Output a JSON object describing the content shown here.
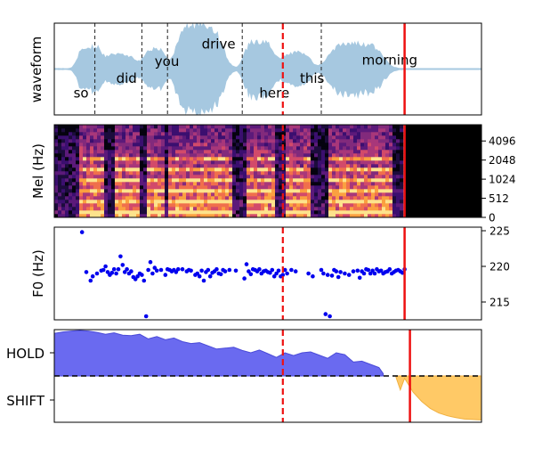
{
  "colors": {
    "waveform": "#a6c8e0",
    "divider": "#222222",
    "cursor": "#ee1111",
    "f0_points": "#0000ee",
    "hold_fill": "#6a6af0",
    "hold_line": "#4a4ad8",
    "shift_fill": "#ffc966",
    "shift_line": "#f0b040",
    "spec_bg": "#000000"
  },
  "chart_data": [
    {
      "type": "area",
      "panel": "waveform",
      "ylabel": "waveform",
      "xlim": [
        0,
        1
      ],
      "ylim": [
        -1,
        1
      ],
      "time_marks": [
        0.095,
        0.205,
        0.265,
        0.44,
        0.625
      ],
      "dashed_cursor": 0.535,
      "solid_cursor": 0.82,
      "words": [
        {
          "text": "so",
          "x": 0.045,
          "y": -0.62
        },
        {
          "text": "did",
          "x": 0.145,
          "y": -0.3
        },
        {
          "text": "you",
          "x": 0.235,
          "y": 0.07
        },
        {
          "text": "drive",
          "x": 0.345,
          "y": 0.45
        },
        {
          "text": "here",
          "x": 0.48,
          "y": -0.62
        },
        {
          "text": "this",
          "x": 0.575,
          "y": -0.3
        },
        {
          "text": "morning",
          "x": 0.72,
          "y": 0.1
        }
      ]
    },
    {
      "type": "heatmap",
      "panel": "mel",
      "ylabel": "Mel (Hz)",
      "yticks": [
        "0",
        "512",
        "1024",
        "2048",
        "4096"
      ],
      "silence_from": 0.82,
      "dashed_cursor": 0.535,
      "solid_cursor": 0.82
    },
    {
      "type": "scatter",
      "panel": "f0",
      "ylabel": "F0 (Hz)",
      "ylim": [
        212.5,
        225.5
      ],
      "yticks": [
        215,
        220,
        225
      ],
      "dashed_cursor": 0.535,
      "solid_cursor": 0.82,
      "x": [
        0.065,
        0.075,
        0.085,
        0.09,
        0.1,
        0.11,
        0.115,
        0.12,
        0.125,
        0.13,
        0.135,
        0.14,
        0.145,
        0.15,
        0.155,
        0.16,
        0.165,
        0.17,
        0.175,
        0.18,
        0.185,
        0.19,
        0.195,
        0.2,
        0.205,
        0.21,
        0.215,
        0.22,
        0.225,
        0.23,
        0.235,
        0.24,
        0.25,
        0.26,
        0.265,
        0.27,
        0.275,
        0.28,
        0.285,
        0.29,
        0.3,
        0.31,
        0.315,
        0.32,
        0.33,
        0.335,
        0.34,
        0.345,
        0.35,
        0.355,
        0.36,
        0.365,
        0.37,
        0.375,
        0.38,
        0.385,
        0.39,
        0.395,
        0.4,
        0.41,
        0.425,
        0.445,
        0.45,
        0.455,
        0.46,
        0.465,
        0.47,
        0.475,
        0.48,
        0.485,
        0.49,
        0.495,
        0.5,
        0.505,
        0.51,
        0.515,
        0.52,
        0.525,
        0.53,
        0.535,
        0.54,
        0.545,
        0.555,
        0.565,
        0.595,
        0.605,
        0.625,
        0.63,
        0.635,
        0.64,
        0.645,
        0.65,
        0.655,
        0.66,
        0.665,
        0.67,
        0.68,
        0.69,
        0.7,
        0.71,
        0.715,
        0.72,
        0.725,
        0.73,
        0.735,
        0.74,
        0.745,
        0.75,
        0.755,
        0.76,
        0.765,
        0.77,
        0.775,
        0.78,
        0.785,
        0.79,
        0.795,
        0.8,
        0.805,
        0.81,
        0.815,
        0.82
      ],
      "y": [
        224.8,
        219.2,
        218.0,
        218.6,
        219.0,
        219.4,
        219.5,
        220.0,
        219.2,
        218.8,
        219.1,
        219.6,
        219.0,
        219.6,
        221.4,
        220.2,
        219.2,
        219.6,
        219.0,
        219.3,
        218.5,
        218.2,
        218.6,
        219.0,
        218.8,
        218.0,
        213.0,
        219.5,
        220.6,
        219.0,
        219.8,
        219.4,
        219.5,
        218.8,
        219.6,
        219.5,
        219.3,
        219.5,
        219.2,
        219.6,
        219.6,
        219.3,
        219.5,
        219.4,
        218.8,
        219.0,
        218.6,
        219.4,
        218.0,
        219.2,
        219.5,
        218.6,
        219.1,
        219.3,
        219.6,
        219.0,
        218.9,
        219.5,
        219.3,
        219.5,
        219.4,
        218.3,
        220.3,
        219.3,
        218.9,
        219.6,
        219.5,
        219.3,
        219.6,
        219.0,
        219.3,
        219.4,
        219.2,
        219.1,
        219.5,
        218.6,
        219.0,
        219.4,
        218.6,
        218.8,
        219.5,
        219.0,
        219.5,
        219.3,
        219.0,
        218.6,
        219.5,
        219.0,
        213.3,
        218.8,
        213.0,
        218.7,
        219.5,
        219.3,
        218.5,
        219.2,
        219.0,
        218.8,
        219.3,
        219.4,
        218.4,
        219.3,
        219.0,
        219.6,
        219.5,
        219.0,
        219.4,
        219.0,
        219.6,
        219.3,
        219.4,
        219.0,
        219.2,
        219.3,
        219.6,
        219.0,
        219.2,
        219.4,
        219.5,
        219.3,
        219.1,
        219.6
      ]
    },
    {
      "type": "area",
      "panel": "turn",
      "yticks": [
        "HOLD",
        "SHIFT"
      ],
      "ylim": [
        -1,
        1
      ],
      "threshold": 0,
      "dashed_cursor": 0.535,
      "solid_cursor": 0.82,
      "hold_x": [
        0.0,
        0.02,
        0.04,
        0.06,
        0.08,
        0.1,
        0.12,
        0.14,
        0.16,
        0.18,
        0.2,
        0.22,
        0.24,
        0.26,
        0.28,
        0.3,
        0.32,
        0.34,
        0.36,
        0.38,
        0.4,
        0.42,
        0.44,
        0.46,
        0.48,
        0.5,
        0.52,
        0.54,
        0.56,
        0.58,
        0.6,
        0.62,
        0.64,
        0.66,
        0.68,
        0.7,
        0.72,
        0.74,
        0.76,
        0.77
      ],
      "hold_y": [
        0.92,
        0.95,
        0.97,
        0.98,
        0.97,
        0.94,
        0.9,
        0.93,
        0.88,
        0.87,
        0.9,
        0.8,
        0.85,
        0.78,
        0.82,
        0.74,
        0.7,
        0.72,
        0.65,
        0.58,
        0.6,
        0.62,
        0.55,
        0.5,
        0.56,
        0.48,
        0.4,
        0.5,
        0.44,
        0.5,
        0.52,
        0.45,
        0.38,
        0.5,
        0.46,
        0.3,
        0.32,
        0.25,
        0.18,
        0.05
      ],
      "shift_x": [
        0.8,
        0.81,
        0.82,
        0.84,
        0.86,
        0.88,
        0.9,
        0.92,
        0.94,
        0.96,
        0.98,
        1.0
      ],
      "shift_y": [
        -0.03,
        -0.3,
        -0.05,
        -0.35,
        -0.55,
        -0.7,
        -0.8,
        -0.86,
        -0.9,
        -0.93,
        -0.94,
        -0.95
      ]
    }
  ]
}
